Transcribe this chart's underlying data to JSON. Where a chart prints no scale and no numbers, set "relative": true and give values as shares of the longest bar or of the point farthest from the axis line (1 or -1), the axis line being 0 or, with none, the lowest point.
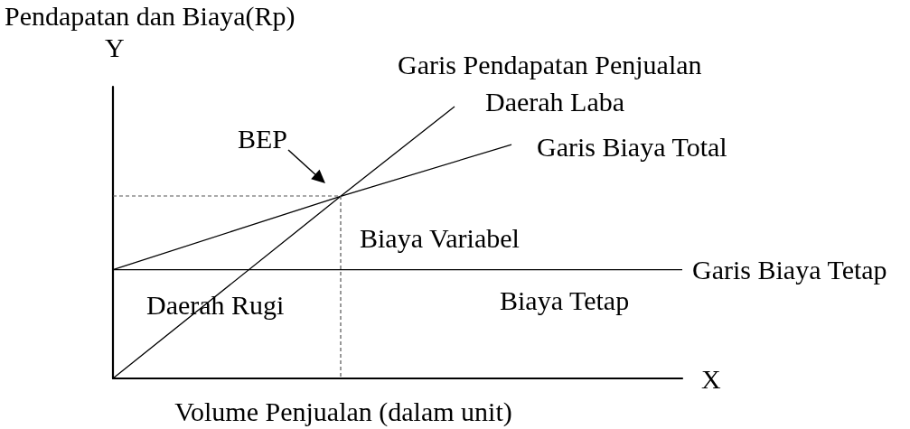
{
  "chart_data": {
    "type": "line",
    "relative": true,
    "xlabel": "Volume Penjualan (dalam unit)",
    "ylabel": "Pendapatan dan Biaya(Rp)",
    "marker": "none",
    "categories": [
      null,
      null,
      null,
      null,
      null,
      null,
      null,
      null,
      null,
      null,
      null
    ],
    "series": [
      {
        "name": "Garis Pendapatan Penjualan",
        "color": "#000000",
        "values": [
          0,
          null,
          null,
          null,
          0.67,
          null,
          1,
          null,
          null,
          null,
          null
        ]
      },
      {
        "name": "Garis Biaya Total",
        "color": "#000000",
        "values": [
          0.4,
          null,
          null,
          null,
          0.67,
          null,
          null,
          0.86,
          null,
          null,
          null
        ]
      },
      {
        "name": "Garis Biaya Tetap",
        "color": "#000000",
        "values": [
          0.4,
          null,
          null,
          null,
          null,
          null,
          null,
          null,
          null,
          null,
          0.4
        ]
      }
    ],
    "annotations": [
      "BEP",
      "Daerah Laba",
      "Biaya Variabel",
      "Daerah Rugi",
      "Biaya Tetap",
      "Y",
      "X"
    ]
  }
}
